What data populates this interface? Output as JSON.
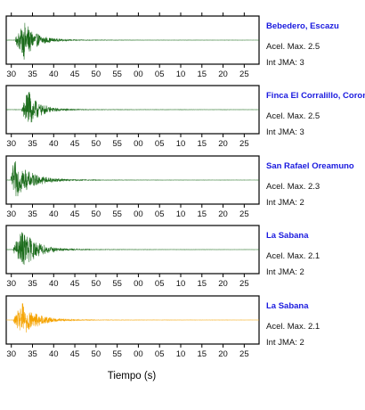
{
  "chart_data": {
    "type": "line",
    "xlabel": "Tiempo (s)",
    "x_ticks": [
      "30",
      "35",
      "40",
      "45",
      "50",
      "55",
      "00",
      "05",
      "10",
      "15",
      "20",
      "25"
    ],
    "panels": [
      {
        "station": "Bebedero, Escazu",
        "acel_label": "Acel. Max. 2.5",
        "int_label": "Int JMA: 3",
        "color": "#1a6b1a",
        "peak_x": 33.0,
        "onset_x": 31.0,
        "peak_amplitude": 0.95,
        "decay_s": 2.8
      },
      {
        "station": "Finca El Corralillo, Coronado",
        "acel_label": "Acel. Max. 2.5",
        "int_label": "Int JMA: 3",
        "color": "#1a6b1a",
        "peak_x": 33.8,
        "onset_x": 32.5,
        "peak_amplitude": 1.0,
        "decay_s": 2.6
      },
      {
        "station": "San Rafael Oreamuno",
        "acel_label": "Acel. Max. 2.3",
        "int_label": "Int JMA: 2",
        "color": "#1a6b1a",
        "peak_x": 30.6,
        "onset_x": 29.9,
        "peak_amplitude": 0.95,
        "decay_s": 4.0
      },
      {
        "station": "La Sabana",
        "acel_label": "Acel. Max. 2.1",
        "int_label": "Int JMA: 2",
        "color": "#1a6b1a",
        "peak_x": 32.8,
        "onset_x": 30.5,
        "peak_amplitude": 1.0,
        "decay_s": 3.2
      },
      {
        "station": "La Sabana",
        "acel_label": "Acel. Max. 2.1",
        "int_label": "Int JMA: 2",
        "color": "#f5a300",
        "peak_x": 32.8,
        "onset_x": 30.5,
        "peak_amplitude": 0.85,
        "decay_s": 3.2
      }
    ]
  }
}
